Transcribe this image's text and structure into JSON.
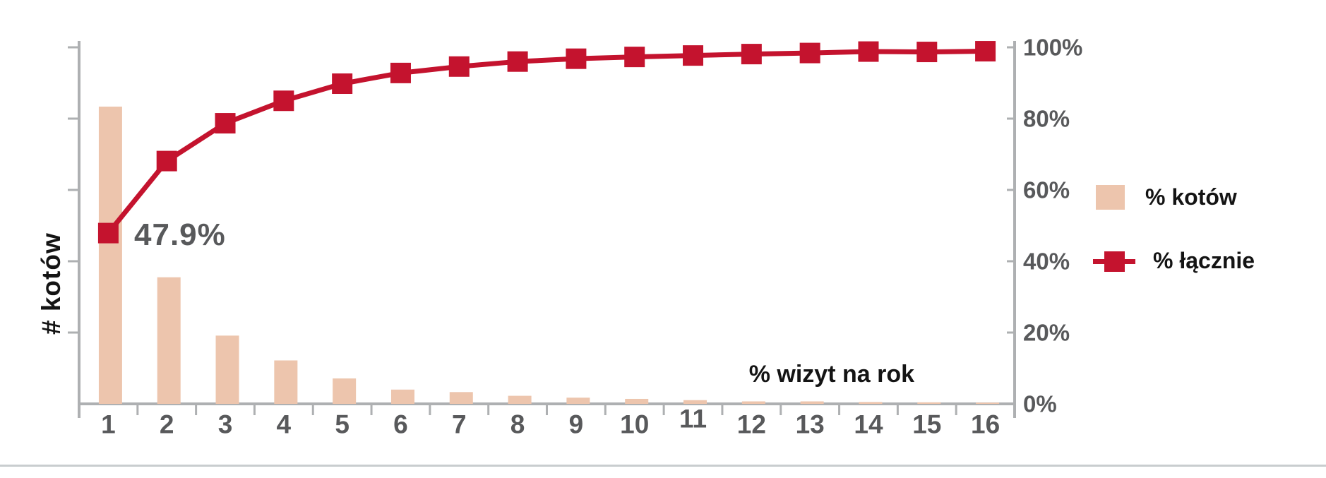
{
  "chart_data": {
    "type": "bar",
    "subtype": "pareto-combo-bar-and-line",
    "categories": [
      "1",
      "2",
      "3",
      "4",
      "5",
      "6",
      "7",
      "8",
      "9",
      "10",
      "11",
      "12",
      "13",
      "14",
      "15",
      "16"
    ],
    "series": [
      {
        "name": "% kotów",
        "type": "bar",
        "color": "#edc5ad",
        "values": [
          47.9,
          20.4,
          11.0,
          7.0,
          4.1,
          2.3,
          1.9,
          1.3,
          1.0,
          0.8,
          0.6,
          0.4,
          0.4,
          0.3,
          0.25,
          0.2
        ]
      },
      {
        "name": "% łącznie",
        "type": "line",
        "marker": "square",
        "color": "#c4132e",
        "values": [
          47.9,
          68.1,
          78.7,
          85.0,
          89.8,
          92.8,
          94.6,
          96.0,
          96.8,
          97.3,
          97.7,
          98.1,
          98.4,
          98.8,
          98.7,
          98.9
        ]
      }
    ],
    "title": "",
    "xlabel": "% wizyt na rok",
    "ylabel_left": "# kotów",
    "right_axis_tick_labels": [
      "0%",
      "20%",
      "40%",
      "60%",
      "80%",
      "100%"
    ],
    "right_axis_range": [
      0,
      100
    ],
    "left_axis_numeric_labels_shown": false,
    "x_label_vertical_jitter": [
      0,
      0,
      0,
      0,
      0,
      0,
      0,
      0,
      0,
      0,
      -8,
      0,
      0,
      0,
      0,
      0
    ],
    "grid": false,
    "legend_position": "right",
    "annotation": {
      "text": "47.9%",
      "target_category": "1",
      "target_value": 47.9
    }
  },
  "legend": {
    "items": [
      {
        "label": "% kotów",
        "swatch": "bar-square"
      },
      {
        "label": "% łącznie",
        "swatch": "line-with-square-marker"
      }
    ]
  },
  "colors": {
    "bar": "#edc5ad",
    "line": "#c4132e",
    "axis": "#aeb0b2",
    "tick_text": "#58595b",
    "label_text": "#141414",
    "annotation_text": "#58595b",
    "divider": "#c9cdcf",
    "background": "#ffffff"
  }
}
